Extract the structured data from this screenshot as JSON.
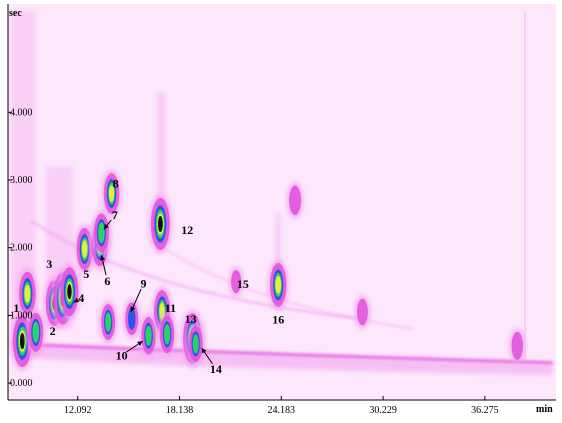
{
  "chart_data": {
    "type": "heatmap",
    "title": "",
    "xlabel": "",
    "ylabel": "",
    "x_unit": "min",
    "y_unit": "sec",
    "xlim": [
      7.95,
      40.5
    ],
    "ylim": [
      -0.25,
      5.6
    ],
    "x_ticks": [
      {
        "value": 12.092,
        "label": "12.092"
      },
      {
        "value": 18.138,
        "label": "18.138"
      },
      {
        "value": 24.183,
        "label": "24.183"
      },
      {
        "value": 30.229,
        "label": "30.229"
      },
      {
        "value": 36.275,
        "label": "36.275"
      }
    ],
    "y_ticks": [
      {
        "value": 0.0,
        "label": "0.000"
      },
      {
        "value": 1.0,
        "label": "1.000"
      },
      {
        "value": 2.0,
        "label": "2.000"
      },
      {
        "value": 3.0,
        "label": "3.000"
      },
      {
        "value": 4.0,
        "label": "4.000"
      }
    ],
    "colors": {
      "background": "#fde7fb",
      "low": "#f2a0f0",
      "mid": "#e050d8",
      "blue": "#2a55e8",
      "green": "#2ed06a",
      "yellow": "#e6ef3a",
      "core": "#111111"
    },
    "peaks": [
      {
        "label": "1",
        "x": 9.1,
        "y": 1.32,
        "intensity": 0.75,
        "label_x": 8.45,
        "label_y": 1.11
      },
      {
        "label": "2",
        "x": 10.7,
        "y": 1.18,
        "intensity": 0.8,
        "label_x": 10.6,
        "label_y": 0.77
      },
      {
        "label": "3",
        "x": 11.2,
        "y": 1.25,
        "intensity": 1.0,
        "label_x": 10.4,
        "label_y": 1.76
      },
      {
        "label": "4",
        "x": 11.6,
        "y": 1.35,
        "intensity": 0.9,
        "label_x": 12.3,
        "label_y": 1.26,
        "arrow": [
          11.85,
          1.19
        ]
      },
      {
        "label": "5",
        "x": 12.5,
        "y": 1.98,
        "intensity": 0.7,
        "label_x": 12.6,
        "label_y": 1.61
      },
      {
        "label": "6",
        "x": 13.4,
        "y": 2.05,
        "intensity": 0.75,
        "label_x": 13.85,
        "label_y": 1.51,
        "arrow": [
          13.5,
          1.89
        ]
      },
      {
        "label": "7",
        "x": 13.5,
        "y": 2.22,
        "intensity": 0.6,
        "label_x": 14.3,
        "label_y": 2.48,
        "arrow": [
          13.65,
          2.27
        ]
      },
      {
        "label": "8",
        "x": 14.1,
        "y": 2.8,
        "intensity": 0.65,
        "label_x": 14.35,
        "label_y": 2.95
      },
      {
        "label": "9",
        "x": 15.3,
        "y": 0.95,
        "intensity": 0.4,
        "label_x": 16.0,
        "label_y": 1.47,
        "arrow": [
          15.25,
          1.05
        ]
      },
      {
        "label": "10",
        "x": 16.3,
        "y": 0.7,
        "intensity": 0.55,
        "label_x": 14.7,
        "label_y": 0.41,
        "arrow": [
          15.95,
          0.62
        ]
      },
      {
        "label": "11",
        "x": 17.1,
        "y": 1.06,
        "intensity": 0.7,
        "label_x": 17.6,
        "label_y": 1.11
      },
      {
        "label": "12",
        "x": 17.0,
        "y": 2.35,
        "intensity": 1.0,
        "label_x": 18.6,
        "label_y": 2.26
      },
      {
        "label": "13",
        "x": 18.9,
        "y": 0.66,
        "intensity": 0.95,
        "label_x": 18.8,
        "label_y": 0.95
      },
      {
        "label": "14",
        "x": 19.1,
        "y": 0.58,
        "intensity": 0.5,
        "label_x": 20.3,
        "label_y": 0.21,
        "arrow": [
          19.45,
          0.52
        ]
      },
      {
        "label": "15",
        "x": 21.5,
        "y": 1.5,
        "intensity": 0.1,
        "label_x": 21.9,
        "label_y": 1.46
      },
      {
        "label": "16",
        "x": 24.0,
        "y": 1.45,
        "intensity": 0.75,
        "label_x": 24.0,
        "label_y": 0.94
      },
      {
        "label": "",
        "x": 8.8,
        "y": 0.62,
        "intensity": 1.0
      },
      {
        "label": "",
        "x": 9.6,
        "y": 0.75,
        "intensity": 0.6
      },
      {
        "label": "",
        "x": 13.9,
        "y": 0.9,
        "intensity": 0.5
      },
      {
        "label": "",
        "x": 17.4,
        "y": 0.72,
        "intensity": 0.55
      },
      {
        "label": "",
        "x": 25.0,
        "y": 2.7,
        "intensity": 0.3
      },
      {
        "label": "",
        "x": 29.0,
        "y": 1.05,
        "intensity": 0.2
      },
      {
        "label": "",
        "x": 38.2,
        "y": 0.55,
        "intensity": 0.25
      }
    ]
  }
}
